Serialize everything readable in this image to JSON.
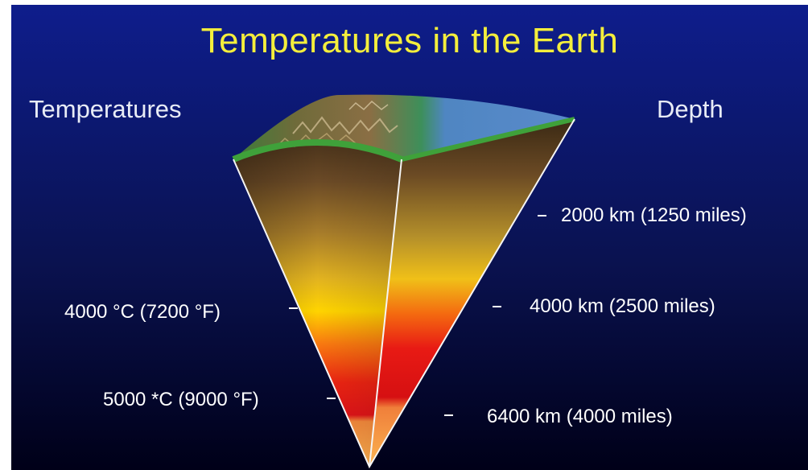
{
  "title": "Temperatures in the Earth",
  "column_labels": {
    "temperatures": "Temperatures",
    "depth": "Depth"
  },
  "temperature_labels": [
    "4000 °C (7200 °F)",
    "5000 *C (9000 °F)"
  ],
  "depth_labels": [
    "2000 km (1250 miles)",
    "4000 km (2500 miles)",
    "6400 km (4000 miles)"
  ],
  "colors": {
    "background_top": "#0e1d8c",
    "background_bottom": "#000018",
    "title": "#f4ee3c",
    "crust_green": "#3f9a3a",
    "ocean_blue": "#4f7fc4",
    "mantle_brown": "#5a3e22",
    "core_red": "#e8141a",
    "inner_core_orange": "#f7a34a"
  }
}
